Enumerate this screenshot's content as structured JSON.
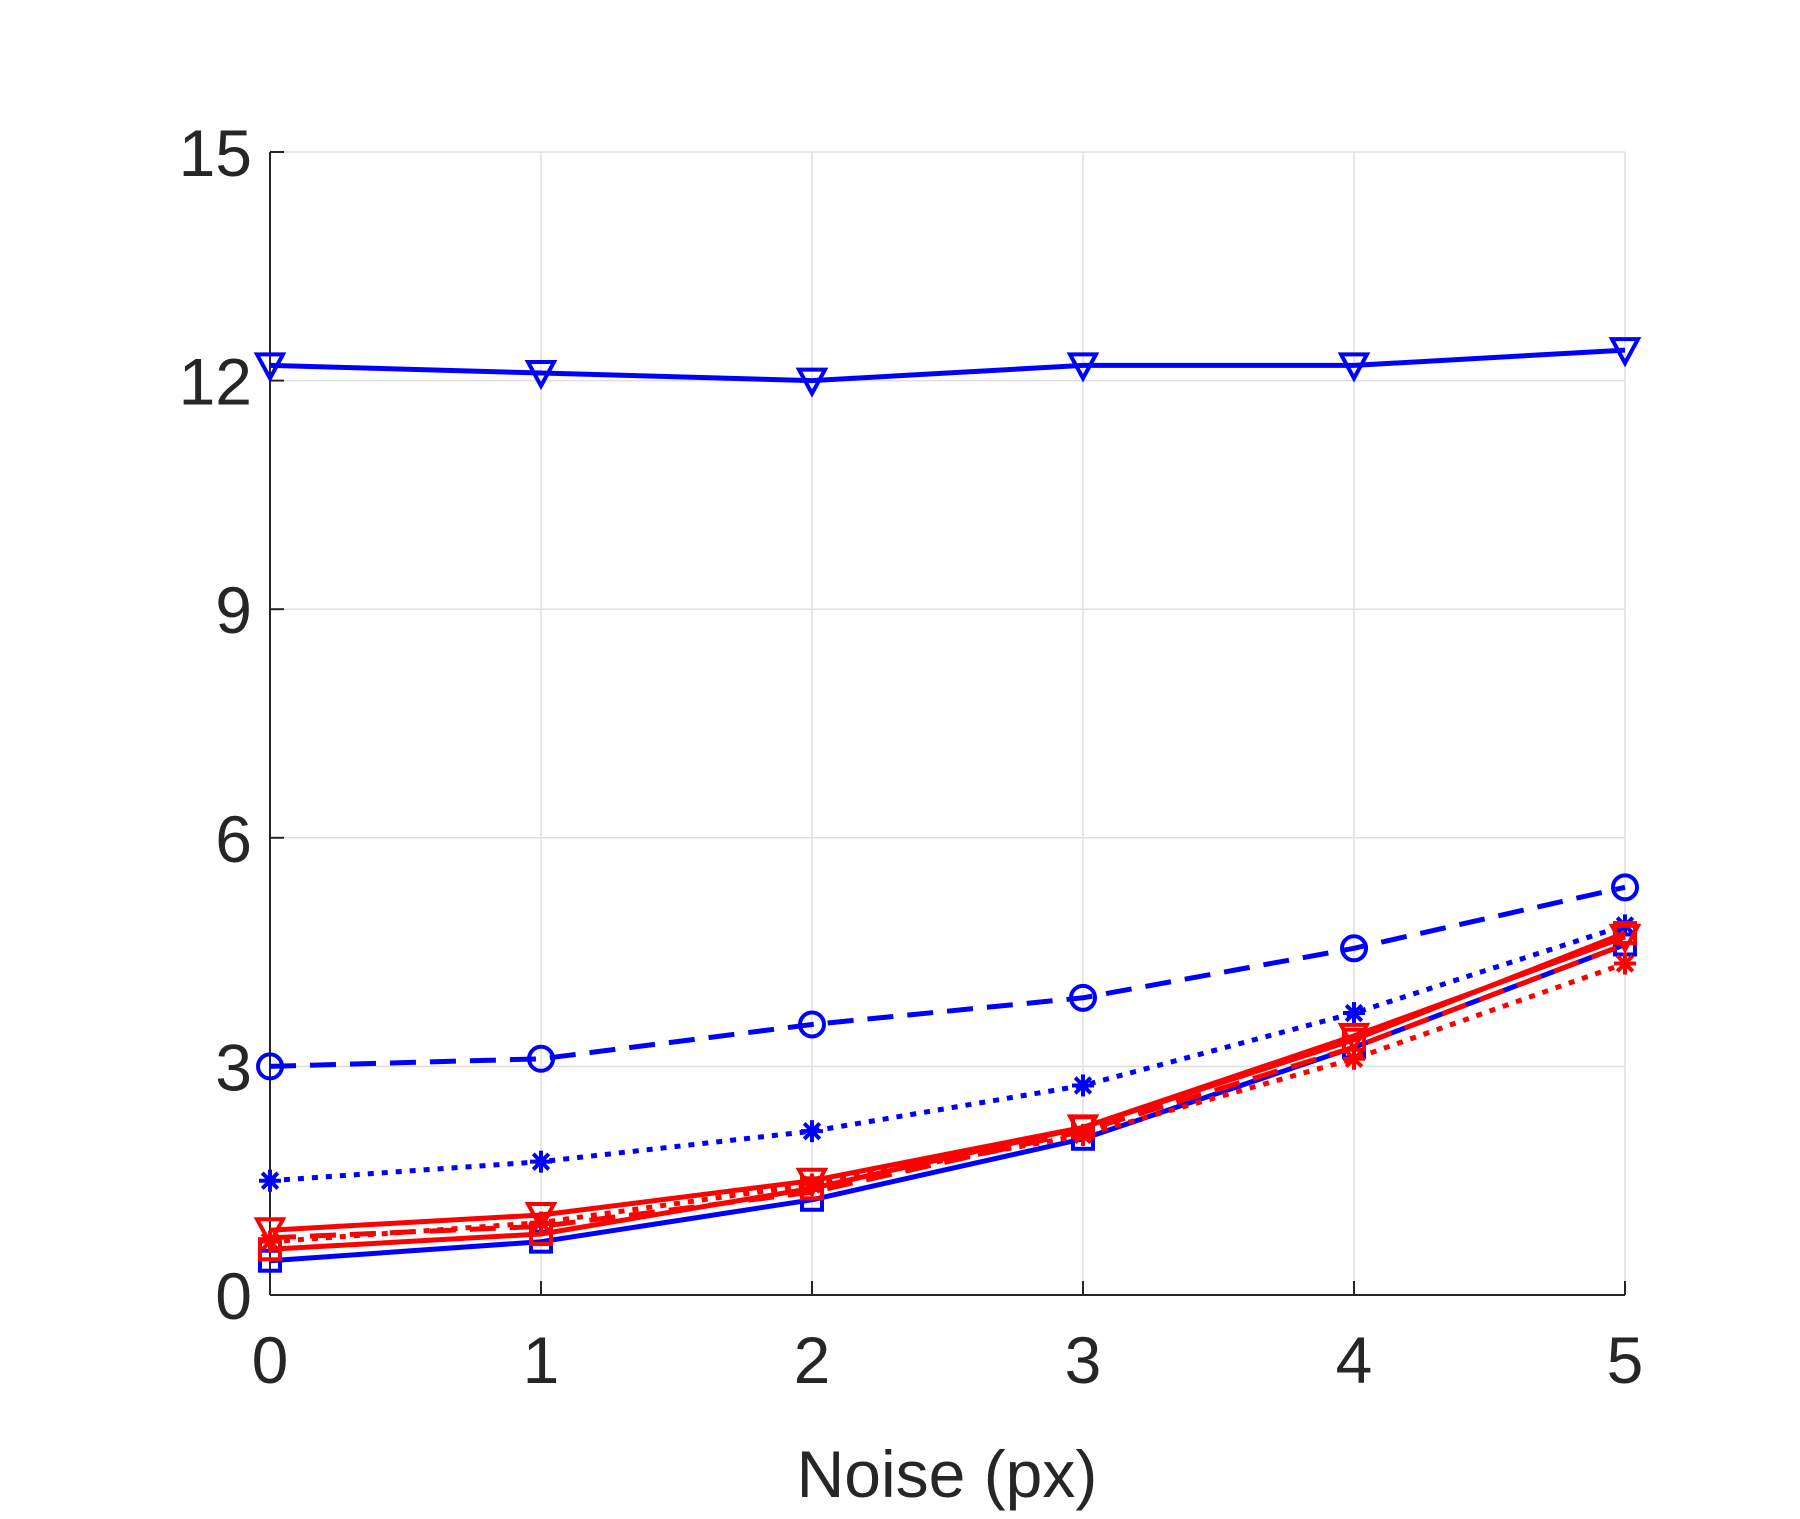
{
  "chart_data": {
    "type": "line",
    "title": "",
    "xlabel": "Noise (px)",
    "ylabel": "",
    "xlim": [
      0,
      5
    ],
    "ylim": [
      0,
      15
    ],
    "xticks": [
      0,
      1,
      2,
      3,
      4,
      5
    ],
    "yticks": [
      0,
      3,
      6,
      9,
      12,
      15
    ],
    "xtick_labels": [
      "0",
      "1",
      "2",
      "3",
      "4",
      "5"
    ],
    "ytick_labels": [
      "0",
      "3",
      "6",
      "9",
      "12",
      "15"
    ],
    "grid": true,
    "x": [
      0,
      1,
      2,
      3,
      4,
      5
    ],
    "series": [
      {
        "name": "blue-triangle-down-solid",
        "color": "#0000ff",
        "dash": "solid",
        "marker": "triangle-down",
        "values": [
          12.2,
          12.1,
          12.0,
          12.2,
          12.2,
          12.4
        ]
      },
      {
        "name": "blue-circle-dashed",
        "color": "#0000ff",
        "dash": "dashed",
        "marker": "circle",
        "values": [
          3.0,
          3.1,
          3.55,
          3.9,
          4.55,
          5.35
        ]
      },
      {
        "name": "blue-star-dotted",
        "color": "#0000ff",
        "dash": "dotted",
        "marker": "star",
        "values": [
          1.5,
          1.75,
          2.15,
          2.75,
          3.7,
          4.85
        ]
      },
      {
        "name": "blue-square-solid",
        "color": "#0000ff",
        "dash": "solid",
        "marker": "square",
        "values": [
          0.45,
          0.7,
          1.25,
          2.05,
          3.25,
          4.6
        ]
      },
      {
        "name": "red-square-solid",
        "color": "#ff0000",
        "dash": "solid",
        "marker": "square",
        "values": [
          0.6,
          0.8,
          1.4,
          2.2,
          3.35,
          4.75
        ]
      },
      {
        "name": "red-triangle-down-solid",
        "color": "#ff0000",
        "dash": "solid",
        "marker": "triangle-down",
        "values": [
          0.85,
          1.05,
          1.5,
          2.2,
          3.4,
          4.7
        ]
      },
      {
        "name": "red-dashed",
        "color": "#ff0000",
        "dash": "dashed",
        "marker": "none",
        "values": [
          0.75,
          0.9,
          1.35,
          2.15,
          3.25,
          4.6
        ]
      },
      {
        "name": "red-star-dotted",
        "color": "#ff0000",
        "dash": "dotted",
        "marker": "star",
        "values": [
          0.7,
          0.95,
          1.45,
          2.1,
          3.1,
          4.35
        ]
      }
    ]
  }
}
